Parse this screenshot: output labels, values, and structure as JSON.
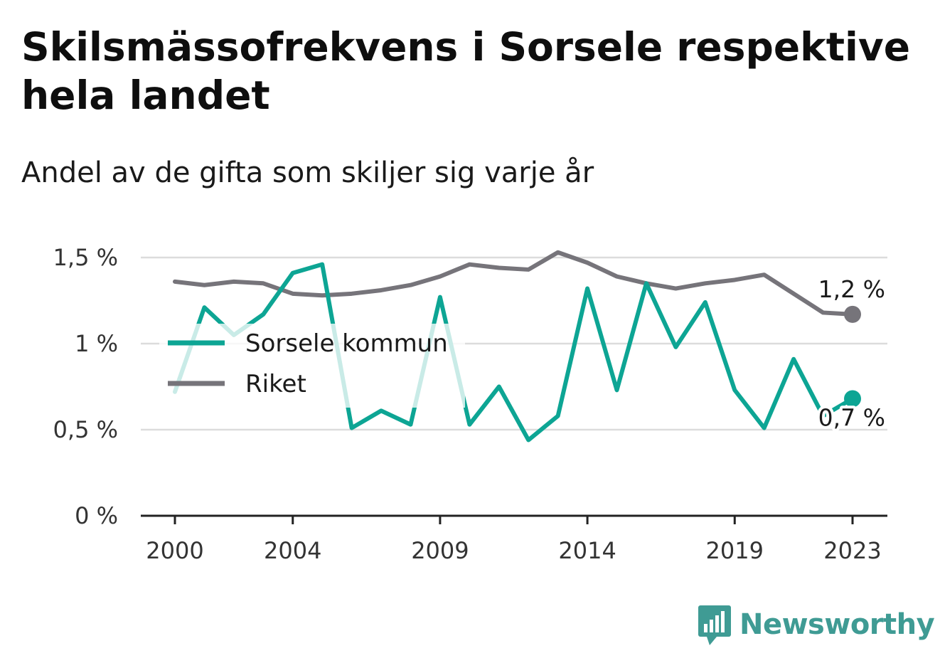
{
  "title": "Skilsmässofrekvens i Sorsele respektive hela landet",
  "subtitle": "Andel av de gifta som skiljer sig varje år",
  "brand": {
    "name": "Newsworthy",
    "icon": "newsworthy-logo-icon",
    "color": "#3f9b94"
  },
  "chart_data": {
    "type": "line",
    "x": [
      2000,
      2001,
      2002,
      2003,
      2004,
      2005,
      2006,
      2007,
      2008,
      2009,
      2010,
      2011,
      2012,
      2013,
      2014,
      2015,
      2016,
      2017,
      2018,
      2019,
      2020,
      2021,
      2022,
      2023
    ],
    "xticks": [
      {
        "value": 2000,
        "label": "2000"
      },
      {
        "value": 2004,
        "label": "2004"
      },
      {
        "value": 2009,
        "label": "2009"
      },
      {
        "value": 2014,
        "label": "2014"
      },
      {
        "value": 2019,
        "label": "2019"
      },
      {
        "value": 2023,
        "label": "2023"
      }
    ],
    "yticks": [
      {
        "value": 0,
        "label": "0 %"
      },
      {
        "value": 0.5,
        "label": "0,5 %"
      },
      {
        "value": 1,
        "label": "1 %"
      },
      {
        "value": 1.5,
        "label": "1,5 %"
      }
    ],
    "ylim": [
      0,
      1.5
    ],
    "grid": true,
    "legend_position": "left",
    "series": [
      {
        "name": "Sorsele kommun",
        "color": "#0da594",
        "values": [
          0.72,
          1.21,
          1.05,
          1.17,
          1.41,
          1.46,
          0.51,
          0.61,
          0.53,
          1.27,
          0.53,
          0.75,
          0.44,
          0.58,
          1.32,
          0.73,
          1.35,
          0.98,
          1.24,
          0.73,
          0.51,
          0.91,
          0.58,
          0.68
        ],
        "end_label": "0,7 %"
      },
      {
        "name": "Riket",
        "color": "#76747a",
        "values": [
          1.36,
          1.34,
          1.36,
          1.35,
          1.29,
          1.28,
          1.29,
          1.31,
          1.34,
          1.39,
          1.46,
          1.44,
          1.43,
          1.53,
          1.47,
          1.39,
          1.35,
          1.32,
          1.35,
          1.37,
          1.4,
          1.29,
          1.18,
          1.17
        ],
        "end_label": "1,2 %"
      }
    ]
  }
}
